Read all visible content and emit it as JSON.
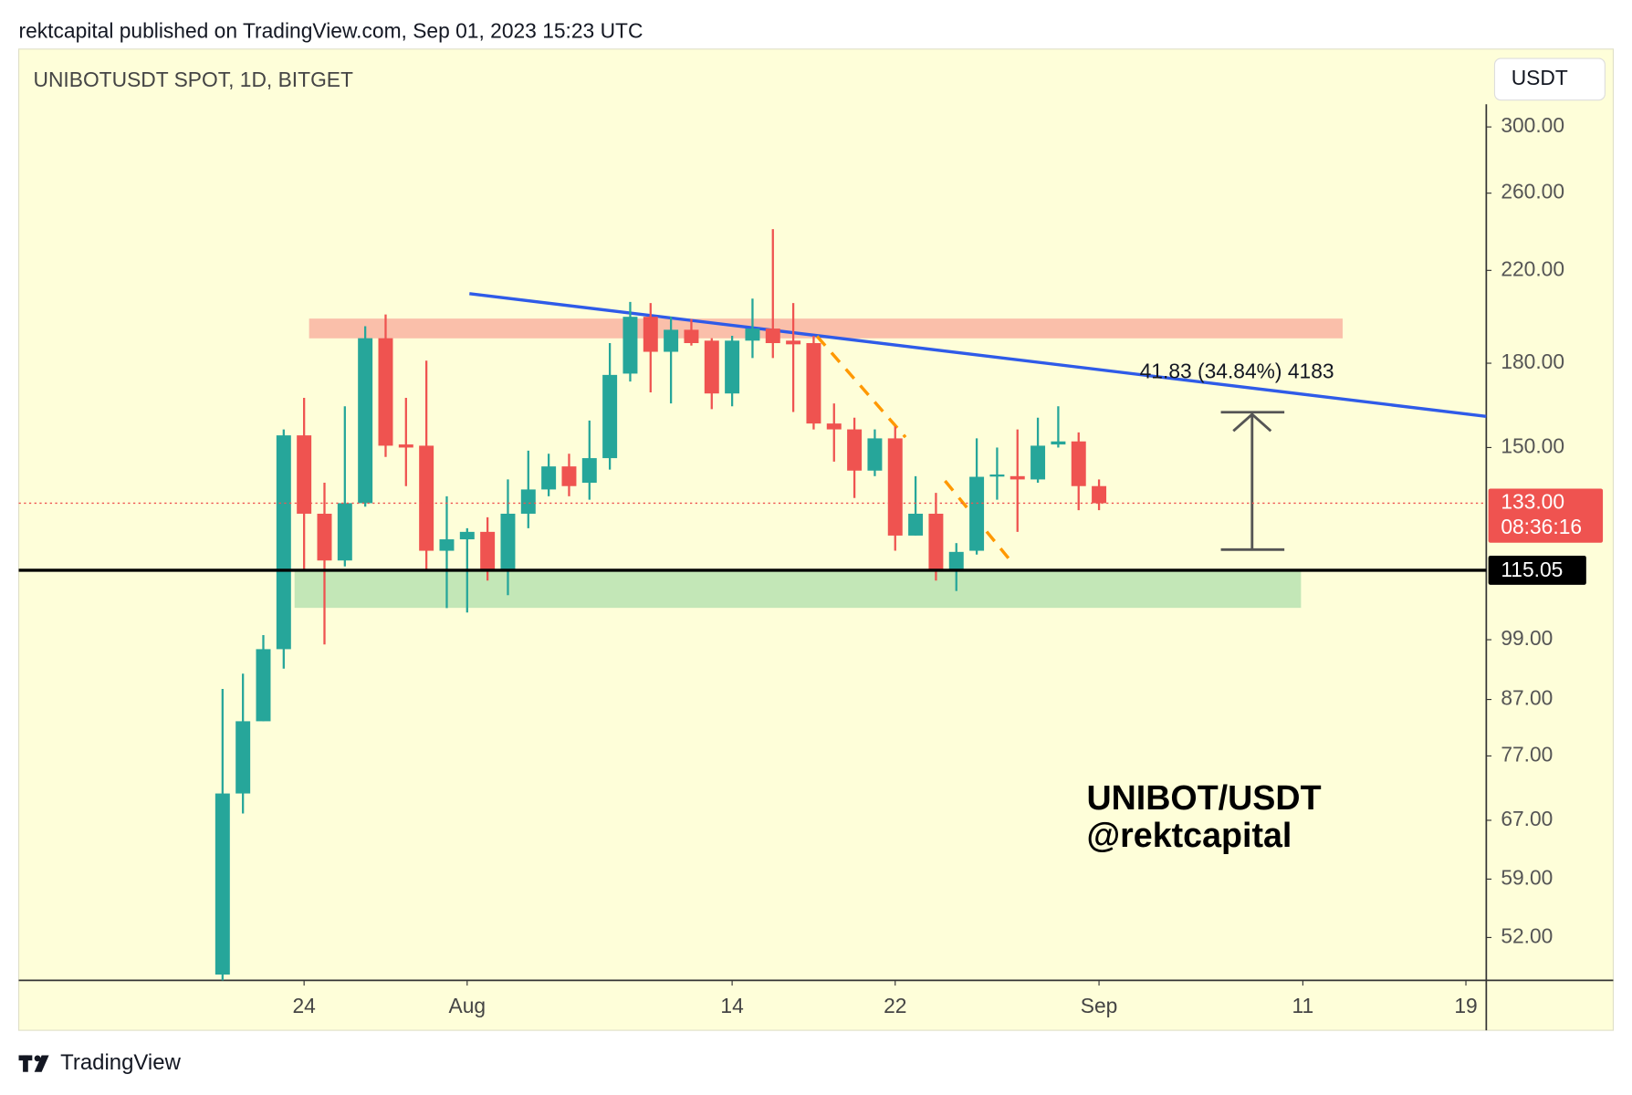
{
  "header": "rektcapital published on TradingView.com, Sep 01, 2023 15:23 UTC",
  "footer": "TradingView",
  "chart_data": {
    "type": "candlestick",
    "title": "UNIBOTUSDT SPOT, 1D, BITGET",
    "currency": "USDT",
    "watermark": [
      "UNIBOT/USDT",
      "@rektcapital"
    ],
    "measure_label": "41.83 (34.84%) 4183",
    "log_scale": true,
    "grid": false,
    "up_color": "#26a69a",
    "down_color": "#ef5350",
    "x": [
      "2023-07-20",
      "2023-07-21",
      "2023-07-22",
      "2023-07-23",
      "2023-07-24",
      "2023-07-25",
      "2023-07-26",
      "2023-07-27",
      "2023-07-28",
      "2023-07-29",
      "2023-07-30",
      "2023-07-31",
      "2023-08-01",
      "2023-08-02",
      "2023-08-03",
      "2023-08-04",
      "2023-08-05",
      "2023-08-06",
      "2023-08-07",
      "2023-08-08",
      "2023-08-09",
      "2023-08-10",
      "2023-08-11",
      "2023-08-12",
      "2023-08-13",
      "2023-08-14",
      "2023-08-15",
      "2023-08-16",
      "2023-08-17",
      "2023-08-18",
      "2023-08-19",
      "2023-08-20",
      "2023-08-21",
      "2023-08-22",
      "2023-08-23",
      "2023-08-24",
      "2023-08-25",
      "2023-08-26",
      "2023-08-27",
      "2023-08-28",
      "2023-08-29",
      "2023-08-30",
      "2023-08-31",
      "2023-09-01"
    ],
    "open": [
      48,
      71,
      83,
      97,
      154,
      130,
      117.5,
      133,
      190,
      151,
      150.6,
      120,
      123,
      125,
      115,
      130,
      137,
      144,
      139,
      146.6,
      176,
      199,
      184.5,
      193.5,
      189,
      168.6,
      189,
      194,
      189,
      188,
      158,
      156,
      142.7,
      153,
      124,
      130,
      115,
      120,
      141,
      141,
      140,
      151,
      152,
      138
    ],
    "close": [
      71,
      83,
      97,
      154,
      130,
      117.5,
      133,
      190,
      150.6,
      150,
      120,
      123,
      125,
      115,
      130,
      137,
      144,
      138,
      146.6,
      175.5,
      199,
      184.5,
      193.5,
      188,
      168.6,
      189,
      194,
      188,
      187.5,
      158,
      156,
      142.7,
      153,
      124,
      130,
      115,
      119.7,
      140.8,
      141.5,
      140,
      150.6,
      152,
      138,
      133
    ],
    "high": [
      89,
      92,
      100,
      156,
      167,
      139,
      164,
      195,
      200,
      167,
      181,
      135,
      126,
      129,
      140,
      149,
      148,
      148,
      159,
      188,
      205.5,
      205,
      199,
      198,
      190,
      191,
      207,
      240.5,
      205,
      191,
      165,
      160,
      156,
      157,
      141,
      136,
      122,
      153,
      150,
      156,
      160,
      164,
      155,
      140
    ],
    "low": [
      46,
      68,
      83,
      93,
      115,
      98,
      116,
      132,
      147,
      138,
      115,
      106,
      105,
      112.5,
      109,
      126,
      135,
      135,
      134,
      143,
      173,
      169,
      165,
      187,
      163,
      164,
      182,
      182,
      162,
      156,
      145.5,
      134.5,
      141,
      120,
      124,
      112.5,
      110,
      119,
      134,
      125,
      139,
      150,
      131,
      131
    ],
    "xlim": [
      "2023-07-10",
      "2023-09-20"
    ],
    "xticks": [
      {
        "value": "2023-07-24",
        "label": "24"
      },
      {
        "value": "2023-08-01",
        "label": "Aug"
      },
      {
        "value": "2023-08-14",
        "label": "14"
      },
      {
        "value": "2023-08-22",
        "label": "22"
      },
      {
        "value": "2023-09-01",
        "label": "Sep"
      },
      {
        "value": "2023-09-11",
        "label": "11"
      },
      {
        "value": "2023-09-19",
        "label": "19"
      }
    ],
    "ylim": [
      47.4,
      355
    ],
    "yticks": [
      {
        "value": 300,
        "label": "300.00"
      },
      {
        "value": 260,
        "label": "260.00"
      },
      {
        "value": 220,
        "label": "220.00"
      },
      {
        "value": 180,
        "label": "180.00"
      },
      {
        "value": 150,
        "label": "150.00"
      },
      {
        "value": 99,
        "label": "99.00"
      },
      {
        "value": 87,
        "label": "87.00"
      },
      {
        "value": 77,
        "label": "77.00"
      },
      {
        "value": 67,
        "label": "67.00"
      },
      {
        "value": 59,
        "label": "59.00"
      },
      {
        "value": 52,
        "label": "52.00"
      }
    ],
    "last_price": {
      "value": 133,
      "label": "133.00",
      "countdown": "08:36:16",
      "color": "#ef5350"
    },
    "level_line": {
      "value": 115.05,
      "color": "#000000"
    }
  }
}
